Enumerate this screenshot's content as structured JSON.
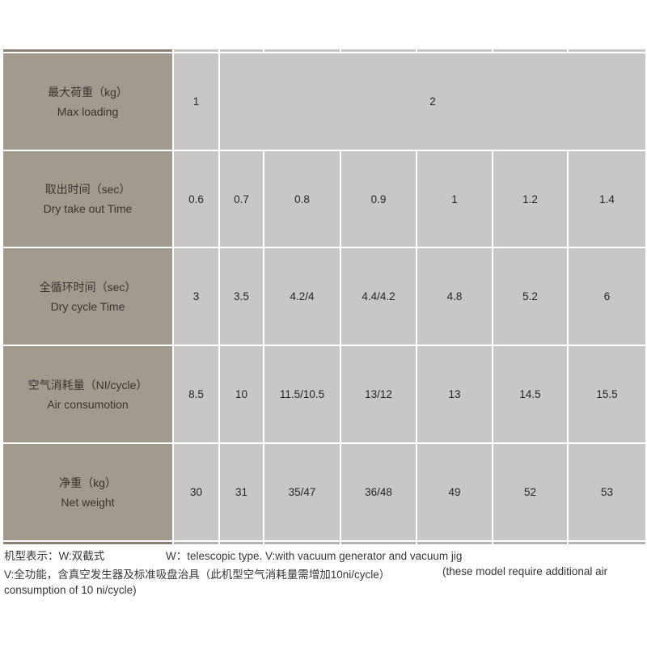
{
  "table": {
    "header_color": "#a2998f",
    "cell_color": "#c8c7c5",
    "sliver_dark_color": "#8b8177",
    "rows": [
      {
        "label_zh": "最大荷重（kg）",
        "label_en": "Max loading",
        "cells": [
          {
            "v": "1",
            "span": 1
          },
          {
            "v": "2",
            "span": 6
          }
        ]
      },
      {
        "label_zh": "取出时间（sec）",
        "label_en": "Dry take out Time",
        "cells": [
          {
            "v": "0.6",
            "span": 1
          },
          {
            "v": "0.7",
            "span": 1
          },
          {
            "v": "0.8",
            "span": 1
          },
          {
            "v": "0.9",
            "span": 1
          },
          {
            "v": "1",
            "span": 1
          },
          {
            "v": "1.2",
            "span": 1
          },
          {
            "v": "1.4",
            "span": 1
          }
        ]
      },
      {
        "label_zh": "全循环时间（sec）",
        "label_en": "Dry cycle Time",
        "cells": [
          {
            "v": "3",
            "span": 1
          },
          {
            "v": "3.5",
            "span": 1
          },
          {
            "v": "4.2/4",
            "span": 1
          },
          {
            "v": "4.4/4.2",
            "span": 1
          },
          {
            "v": "4.8",
            "span": 1
          },
          {
            "v": "5.2",
            "span": 1
          },
          {
            "v": "6",
            "span": 1
          }
        ]
      },
      {
        "label_zh": "空气消耗量（NI/cycle）",
        "label_en": "Air consumotion",
        "cells": [
          {
            "v": "8.5",
            "span": 1
          },
          {
            "v": "10",
            "span": 1
          },
          {
            "v": "11.5/10.5",
            "span": 1
          },
          {
            "v": "13/12",
            "span": 1
          },
          {
            "v": "13",
            "span": 1
          },
          {
            "v": "14.5",
            "span": 1
          },
          {
            "v": "15.5",
            "span": 1
          }
        ]
      },
      {
        "label_zh": "净重（kg）",
        "label_en": "Net weight",
        "cells": [
          {
            "v": "30",
            "span": 1
          },
          {
            "v": "31",
            "span": 1
          },
          {
            "v": "35/47",
            "span": 1
          },
          {
            "v": "36/48",
            "span": 1
          },
          {
            "v": "49",
            "span": 1
          },
          {
            "v": "52",
            "span": 1
          },
          {
            "v": "53",
            "span": 1
          }
        ]
      }
    ]
  },
  "footer": {
    "line1_left": "机型表示：W:双截式",
    "line1_right": "W：telescopic type. V:with vacuum generator and vacuum jig",
    "line2_left": "V:全功能，含真空发生器及标准吸盘治具（此机型空气消耗量需增加10ni/cycle）",
    "line2_right": "(these model require additional air",
    "line3": "consumption of 10 ni/cycle)"
  }
}
